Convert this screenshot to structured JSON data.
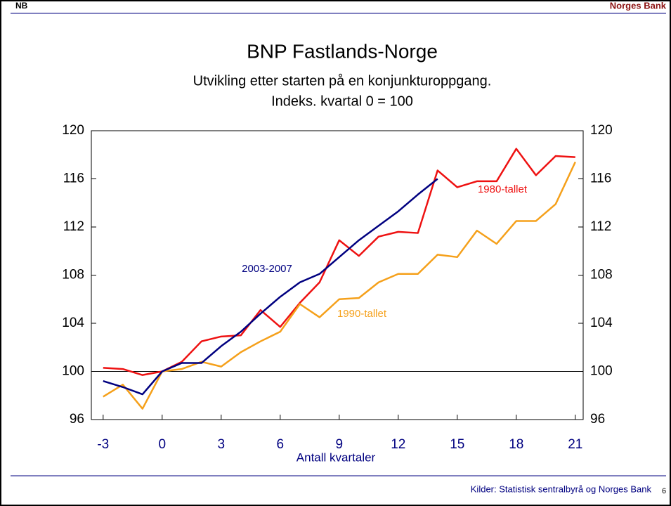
{
  "header": {
    "logo": "NB",
    "brand": "Norges Bank"
  },
  "chart_data": {
    "type": "line",
    "title": "BNP Fastlands-Norge",
    "subtitle": [
      "Utvikling etter starten på en konjunkturoppgang.",
      "Indeks. kvartal 0 = 100"
    ],
    "x_label": "Antall kvartaler",
    "x": [
      -3,
      -2,
      -1,
      0,
      1,
      2,
      3,
      4,
      5,
      6,
      7,
      8,
      9,
      10,
      11,
      12,
      13,
      14,
      15,
      16,
      17,
      18,
      19,
      20,
      21
    ],
    "series": [
      {
        "name": "1980-tallet",
        "color": "#ee1111",
        "values": [
          100.3,
          100.2,
          99.7,
          100,
          100.8,
          102.5,
          102.9,
          103.0,
          105.1,
          103.7,
          105.7,
          107.4,
          110.9,
          109.6,
          111.2,
          111.6,
          111.5,
          116.7,
          115.3,
          115.8,
          115.8,
          118.5,
          116.3,
          117.9,
          117.8
        ]
      },
      {
        "name": "1990-tallet",
        "color": "#f5a01a",
        "values": [
          97.9,
          98.9,
          96.9,
          100,
          100.2,
          100.8,
          100.4,
          101.6,
          102.5,
          103.3,
          105.6,
          104.5,
          106.0,
          106.1,
          107.4,
          108.1,
          108.1,
          109.7,
          109.5,
          111.7,
          110.6,
          112.5,
          112.5,
          113.9,
          117.4
        ]
      },
      {
        "name": "2003-2007",
        "color": "#000080",
        "values": [
          99.2,
          98.7,
          98.1,
          100,
          100.7,
          100.7,
          102.1,
          103.3,
          104.8,
          106.2,
          107.4,
          108.1,
          109.5,
          110.9,
          112.1,
          113.3,
          114.7,
          116.0,
          null,
          null,
          null,
          null,
          null,
          null,
          null
        ]
      }
    ],
    "xlim": [
      -3.6,
      21.4
    ],
    "xticks": [
      -3,
      0,
      3,
      6,
      9,
      12,
      15,
      18,
      21
    ],
    "ylim": [
      96,
      120
    ],
    "yticks": [
      96,
      100,
      104,
      108,
      112,
      116,
      120
    ],
    "reference_line": 100
  },
  "footer": {
    "source": "Kilder: Statistisk sentralbyrå og Norges Bank",
    "page": "6"
  }
}
